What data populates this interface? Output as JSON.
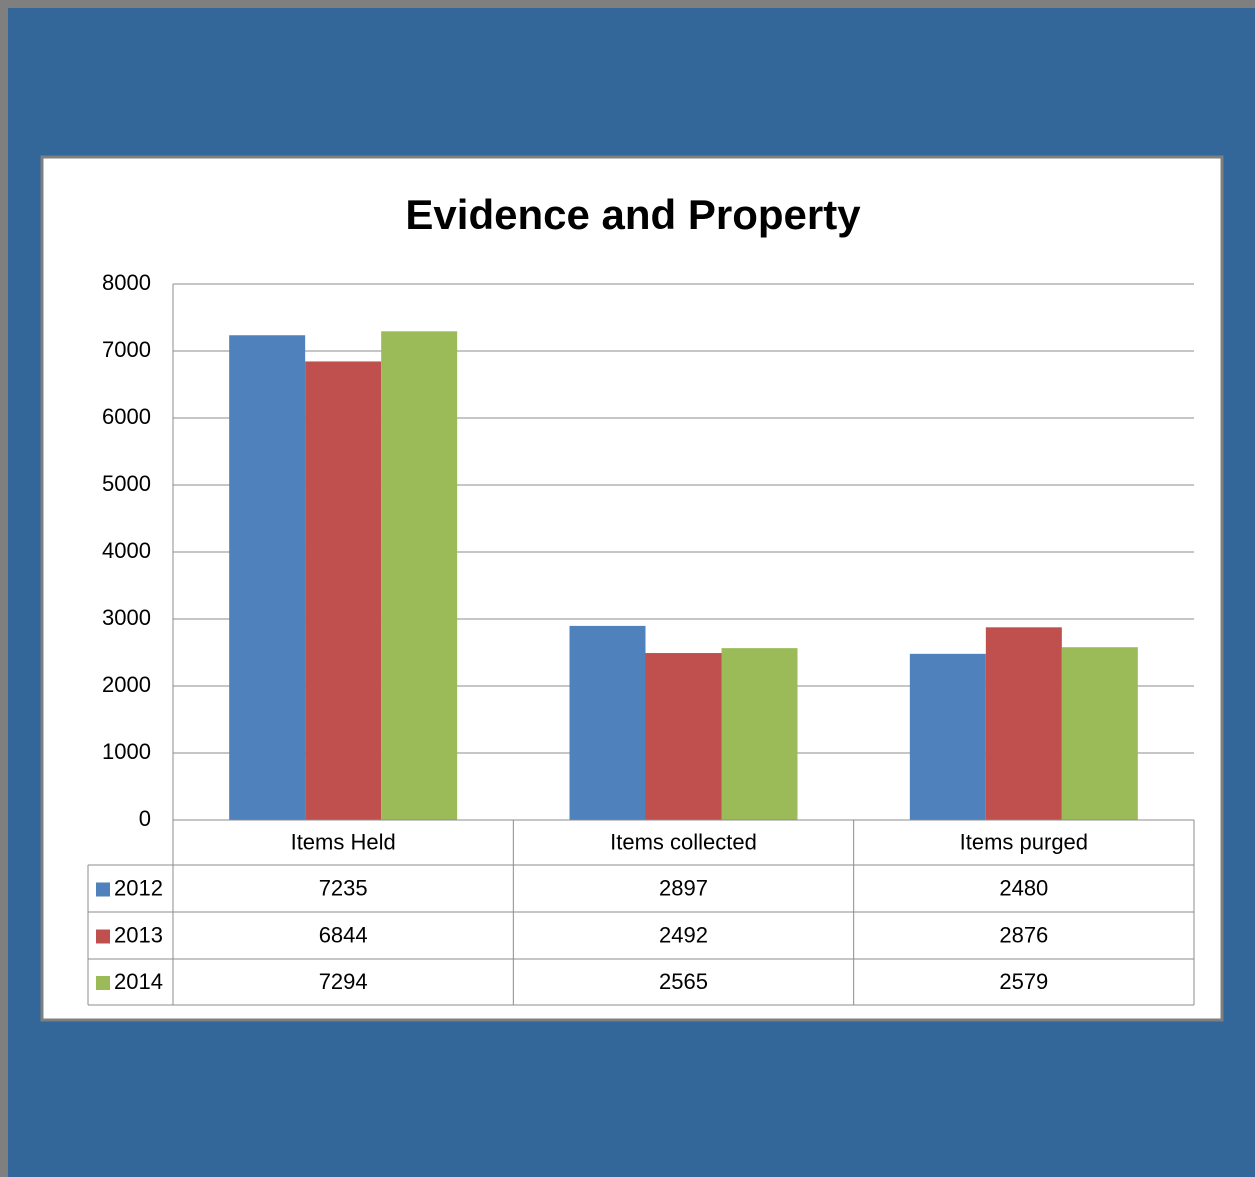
{
  "chart_data": {
    "type": "bar",
    "title": "Evidence and Property",
    "categories": [
      "Items Held",
      "Items collected",
      "Items purged"
    ],
    "series": [
      {
        "name": "2012",
        "color": "#4f81bd",
        "values": [
          7235,
          2897,
          2480
        ]
      },
      {
        "name": "2013",
        "color": "#c0504d",
        "values": [
          6844,
          2492,
          2876
        ]
      },
      {
        "name": "2014",
        "color": "#9bbb59",
        "values": [
          7294,
          2565,
          2579
        ]
      }
    ],
    "ylim": [
      0,
      8000
    ],
    "yticks": [
      0,
      1000,
      2000,
      3000,
      4000,
      5000,
      6000,
      7000,
      8000
    ],
    "grid": true,
    "data_table": true
  }
}
